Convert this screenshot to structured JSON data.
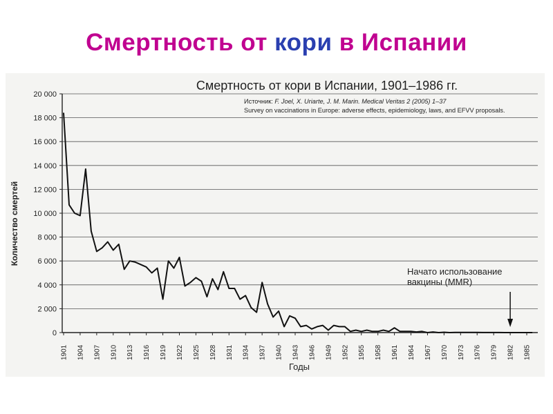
{
  "slide": {
    "title_part1": "Смертность от ",
    "title_part2": "кори",
    "title_part3": " в Испании"
  },
  "chart_data": {
    "type": "line",
    "title": "Смертность от кори в Испании, 1901–1986 гг.",
    "source_label": "Источник: ",
    "source_text": "F. Joel, X. Uriarte, J. M. Marin. Medical Veritas 2 (2005) 1–37",
    "source_line2": "Survey on vaccinations in Europe: adverse effects, epidemiology, laws, and EFVV proposals.",
    "xlabel": "Годы",
    "ylabel": "Количество смертей",
    "ylim": [
      0,
      20000
    ],
    "xlim": [
      1901,
      1986
    ],
    "grid": true,
    "y_ticks": [
      0,
      2000,
      4000,
      6000,
      8000,
      10000,
      12000,
      14000,
      16000,
      18000,
      20000
    ],
    "y_tick_labels": [
      "0",
      "2 000",
      "4 000",
      "6 000",
      "8 000",
      "10 000",
      "12 000",
      "14 000",
      "16 000",
      "18 000",
      "20 000"
    ],
    "x_ticks": [
      1901,
      1904,
      1907,
      1910,
      1913,
      1916,
      1919,
      1922,
      1925,
      1928,
      1931,
      1934,
      1937,
      1940,
      1943,
      1946,
      1949,
      1952,
      1955,
      1958,
      1961,
      1964,
      1967,
      1970,
      1973,
      1976,
      1979,
      1982,
      1985
    ],
    "x_tick_labels": [
      "1901",
      "1904",
      "1907",
      "1910",
      "1913",
      "1916",
      "1919",
      "1922",
      "1925",
      "1928",
      "1931",
      "1934",
      "1937",
      "1940",
      "1943",
      "1946",
      "1949",
      "1952",
      "1955",
      "1958",
      "1961",
      "1964",
      "1967",
      "1970",
      "1973",
      "1976",
      "1979",
      "1982",
      "1985"
    ],
    "series": [
      {
        "x": [
          1901,
          1902,
          1903,
          1904,
          1905,
          1906,
          1907,
          1908,
          1909,
          1910,
          1911,
          1912,
          1913,
          1914,
          1915,
          1916,
          1917,
          1918,
          1919,
          1920,
          1921,
          1922,
          1923,
          1924,
          1925,
          1926,
          1927,
          1928,
          1929,
          1930,
          1931,
          1932,
          1933,
          1934,
          1935,
          1936,
          1937,
          1938,
          1939,
          1940,
          1941,
          1942,
          1943,
          1944,
          1945,
          1946,
          1947,
          1948,
          1949,
          1950,
          1951,
          1952,
          1953,
          1954,
          1955,
          1956,
          1957,
          1958,
          1959,
          1960,
          1961,
          1962,
          1963,
          1964,
          1965,
          1966,
          1967,
          1968,
          1969,
          1970,
          1971,
          1972,
          1973,
          1974,
          1975,
          1976,
          1977,
          1978,
          1979,
          1980,
          1981,
          1982,
          1983,
          1984,
          1985,
          1986
        ],
        "values": [
          18400,
          10700,
          10000,
          9800,
          13700,
          8500,
          6800,
          7100,
          7600,
          6900,
          7400,
          5300,
          6000,
          5900,
          5700,
          5500,
          5000,
          5400,
          2800,
          6000,
          5400,
          6300,
          3900,
          4200,
          4600,
          4300,
          3000,
          4500,
          3600,
          5100,
          3700,
          3700,
          2800,
          3100,
          2100,
          1700,
          4200,
          2400,
          1300,
          1800,
          500,
          1400,
          1200,
          500,
          600,
          300,
          500,
          600,
          200,
          600,
          500,
          500,
          100,
          200,
          100,
          200,
          100,
          100,
          200,
          100,
          400,
          100,
          100,
          100,
          50,
          100,
          0,
          50,
          0,
          30,
          0,
          20,
          20,
          10,
          10,
          10,
          5,
          5,
          5,
          5,
          0,
          0,
          0,
          0,
          0,
          0
        ]
      }
    ],
    "annotation": {
      "line1": "Начато использование",
      "line2": "вакцины (MMR)",
      "arrow_year": 1982
    }
  }
}
